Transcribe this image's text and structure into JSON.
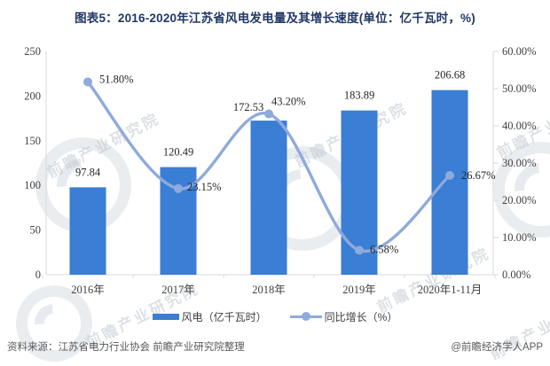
{
  "title": "图表5：2016-2020年江苏省风电发电量及其增长速度(单位：亿千瓦时，%)",
  "chart_data": {
    "type": "bar",
    "subtype": "combo-bar-line",
    "categories": [
      "2016年",
      "2017年",
      "2018年",
      "2019年",
      "2020年1-11月"
    ],
    "series": [
      {
        "name": "风电（亿千瓦时）",
        "type": "bar",
        "axis": "left",
        "color": "#3a7ed5",
        "values": [
          97.84,
          120.49,
          172.53,
          183.89,
          206.68
        ],
        "labels": [
          "97.84",
          "120.49",
          "172.53",
          "183.89",
          "206.68"
        ]
      },
      {
        "name": "同比增长（%）",
        "type": "line",
        "axis": "right",
        "color": "#8faadc",
        "values": [
          51.8,
          23.15,
          43.2,
          6.58,
          26.67
        ],
        "labels": [
          "51.80%",
          "23.15%",
          "43.20%",
          "6.58%",
          "26.67%"
        ]
      }
    ],
    "left_axis": {
      "min": 0,
      "max": 250,
      "ticks": [
        "0",
        "50",
        "100",
        "150",
        "200",
        "250"
      ]
    },
    "right_axis": {
      "min": 0,
      "max": 60,
      "ticks": [
        "0.00%",
        "10.00%",
        "20.00%",
        "30.00%",
        "40.00%",
        "50.00%",
        "60.00%"
      ]
    },
    "legend_position": "bottom",
    "grid": false
  },
  "footer": {
    "source": "资料来源：江苏省电力行业协会 前瞻产业研究院整理",
    "credit": "@前瞻经济学人APP"
  },
  "watermark": {
    "text": "前瞻产业研究院"
  },
  "colors": {
    "bar": "#3a7ed5",
    "line": "#8faadc",
    "title": "#1f3864",
    "axis_line": "#d9d9d9",
    "tick_text": "#404040",
    "label_text": "#262626",
    "source_text": "#595959"
  }
}
